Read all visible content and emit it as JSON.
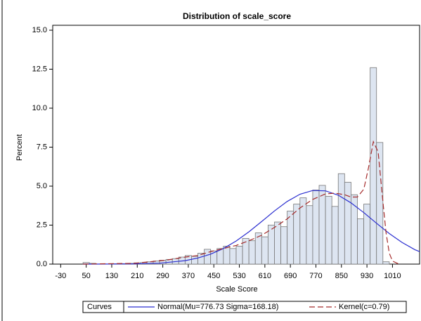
{
  "chart_data": {
    "type": "histogram",
    "title": "Distribution of scale_score",
    "xlabel": "Scale Score",
    "ylabel": "Percent",
    "legend_title": "Curves",
    "bins": [
      40,
      60,
      80,
      100,
      120,
      140,
      160,
      180,
      200,
      220,
      240,
      260,
      280,
      300,
      320,
      340,
      360,
      380,
      400,
      420,
      440,
      460,
      480,
      500,
      520,
      540,
      560,
      580,
      600,
      620,
      640,
      660,
      680,
      700,
      720,
      740,
      760,
      780,
      800,
      820,
      840,
      860,
      880,
      900,
      920,
      940,
      960,
      980,
      1000
    ],
    "values": [
      0.1,
      0.05,
      0,
      0,
      0.02,
      0.02,
      0.03,
      0.05,
      0.08,
      0.1,
      0.15,
      0.2,
      0.25,
      0.3,
      0.35,
      0.45,
      0.55,
      0.5,
      0.7,
      0.95,
      0.85,
      1.0,
      1.15,
      1.0,
      1.15,
      1.65,
      1.5,
      2.0,
      1.75,
      2.5,
      2.7,
      2.4,
      3.4,
      3.85,
      4.25,
      3.75,
      4.75,
      5.05,
      4.35,
      3.7,
      5.8,
      5.25,
      4.45,
      2.9,
      3.85,
      12.6,
      7.8,
      0.15
    ],
    "color": "#dde5f1",
    "edge_color": "#777777",
    "series": [
      {
        "name": "Normal(Mu=776.73 Sigma=168.18)",
        "color": "#2b2fd0",
        "dashed": false,
        "x": [
          40,
          120,
          200,
          280,
          360,
          400,
          440,
          480,
          520,
          560,
          600,
          640,
          680,
          720,
          760,
          800,
          840,
          880,
          920,
          960,
          1000,
          1040,
          1080,
          1095
        ],
        "values": [
          0.0003,
          0.0023,
          0.013,
          0.06,
          0.22,
          0.39,
          0.64,
          1.0,
          1.48,
          2.07,
          2.73,
          3.41,
          4.02,
          4.48,
          4.72,
          4.7,
          4.42,
          3.93,
          3.3,
          2.62,
          1.96,
          1.39,
          0.93,
          0.8
        ]
      },
      {
        "name": "Kernel(c=0.79)",
        "color": "#a52a2a",
        "dashed": true,
        "x": [
          40,
          200,
          300,
          360,
          400,
          440,
          480,
          520,
          560,
          600,
          640,
          680,
          720,
          760,
          800,
          830,
          860,
          880,
          900,
          920,
          935,
          950,
          965,
          980,
          990,
          1000,
          1010,
          1030
        ],
        "values": [
          0,
          0.05,
          0.25,
          0.45,
          0.55,
          0.8,
          1.0,
          1.2,
          1.5,
          1.85,
          2.35,
          2.9,
          3.6,
          4.15,
          4.5,
          4.55,
          4.45,
          4.3,
          4.3,
          4.8,
          6.2,
          7.85,
          7.2,
          4.0,
          2.0,
          0.7,
          0.2,
          0
        ]
      }
    ],
    "xlim": [
      -55,
      1095
    ],
    "xticks": [
      -30,
      50,
      130,
      210,
      290,
      370,
      450,
      530,
      610,
      690,
      770,
      850,
      930,
      1010
    ],
    "ylim": [
      0,
      15
    ],
    "yticks": [
      {
        "value": 0,
        "label": "0.0"
      },
      2.5,
      {
        "value": 5,
        "label": "5.0"
      },
      7.5,
      {
        "value": 10,
        "label": "10.0"
      },
      12.5,
      {
        "value": 15,
        "label": "15.0"
      }
    ]
  }
}
